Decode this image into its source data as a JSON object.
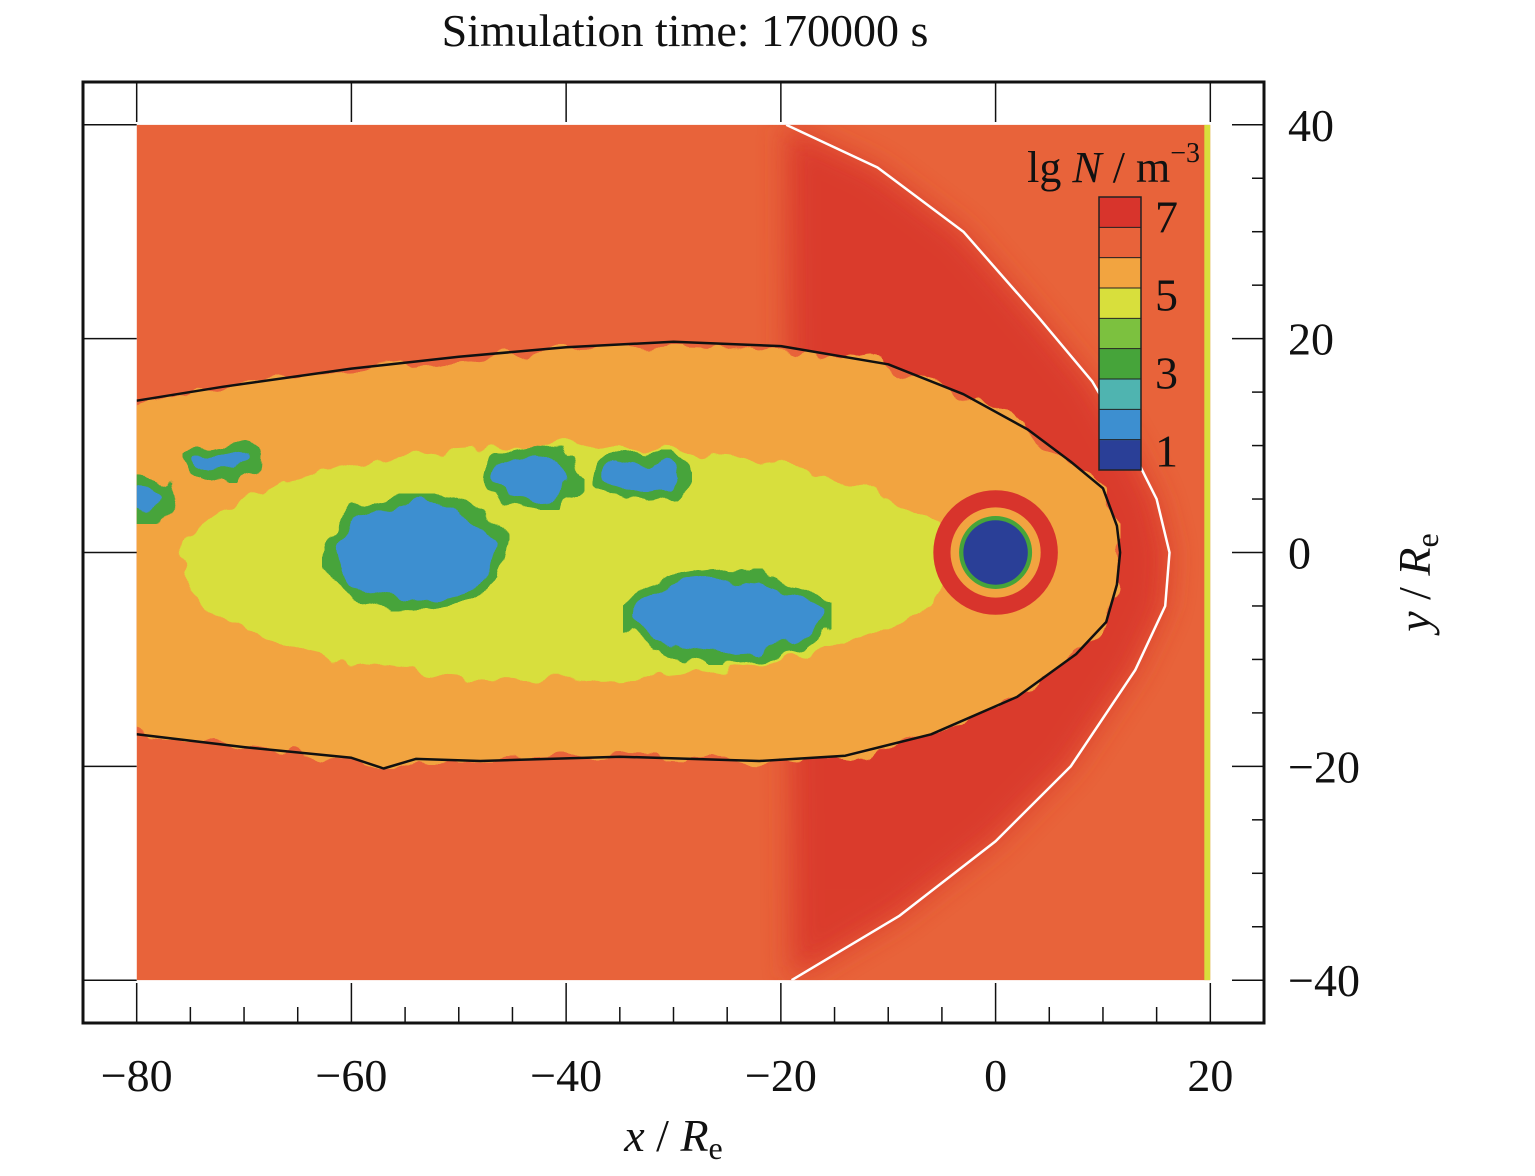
{
  "chart_data": {
    "type": "heatmap",
    "title": "Simulation time: 170000 s",
    "xlabel": {
      "symbol": "x",
      "separator": " / ",
      "unit_main": "R",
      "unit_sub": "e"
    },
    "ylabel": {
      "symbol": "y",
      "separator": " / ",
      "unit_main": "R",
      "unit_sub": "e"
    },
    "xlim": [
      -85,
      25
    ],
    "ylim": [
      -44,
      44
    ],
    "domain_x": [
      -80,
      20
    ],
    "domain_y": [
      -40,
      40
    ],
    "x_ticks": [
      -80,
      -60,
      -40,
      -20,
      0,
      20
    ],
    "x_tick_labels": [
      "−80",
      "−60",
      "−40",
      "−20",
      "0",
      "20"
    ],
    "y_ticks": [
      -40,
      -20,
      0,
      20,
      40
    ],
    "y_tick_labels": [
      "−40",
      "−20",
      "0",
      "20",
      "40"
    ],
    "grid": false,
    "colorbar": {
      "label_prefix": "lg ",
      "label_symbol": "N",
      "label_unit": " / m",
      "label_exp": "−3",
      "ticks": [
        1,
        3,
        5,
        7
      ],
      "tick_labels": [
        "1",
        "3",
        "5",
        "7"
      ],
      "range": [
        0.5,
        7.5
      ],
      "colors": [
        "#2a3f97",
        "#3d8fd0",
        "#4fb4b0",
        "#46a43a",
        "#7cc13f",
        "#d8df3c",
        "#f2a440",
        "#e8633a",
        "#d8342c"
      ],
      "placement": "top-right"
    },
    "background_log_density": 6.7,
    "features": {
      "magnetopause": {
        "color": "#111111",
        "points": [
          [
            -80,
            14.2
          ],
          [
            -72,
            15.5
          ],
          [
            -60,
            17.2
          ],
          [
            -50,
            18.3
          ],
          [
            -40,
            19.2
          ],
          [
            -30,
            19.7
          ],
          [
            -20,
            19.3
          ],
          [
            -10,
            17.6
          ],
          [
            -3,
            14.8
          ],
          [
            3,
            11.5
          ],
          [
            7,
            8.5
          ],
          [
            10,
            6
          ],
          [
            11.3,
            2.5
          ],
          [
            11.6,
            0
          ],
          [
            11.3,
            -3
          ],
          [
            10.3,
            -6.5
          ],
          [
            7.5,
            -9.5
          ],
          [
            2,
            -13.5
          ],
          [
            -6,
            -17
          ],
          [
            -14,
            -19
          ],
          [
            -22,
            -19.5
          ],
          [
            -35,
            -19.1
          ],
          [
            -48,
            -19.5
          ],
          [
            -54,
            -19.3
          ],
          [
            -57,
            -20.2
          ],
          [
            -60,
            -19.2
          ],
          [
            -70,
            -18.2
          ],
          [
            -80,
            -17
          ]
        ]
      },
      "bow_shock": {
        "color": "#ffffff",
        "points": [
          [
            -19.5,
            40
          ],
          [
            -11,
            36
          ],
          [
            -3,
            30
          ],
          [
            4,
            22
          ],
          [
            9,
            16
          ],
          [
            12.5,
            10
          ],
          [
            15,
            5
          ],
          [
            16.2,
            0
          ],
          [
            15.8,
            -5
          ],
          [
            13,
            -11
          ],
          [
            7,
            -20
          ],
          [
            0,
            -27
          ],
          [
            -9,
            -34
          ],
          [
            -19,
            -40
          ]
        ]
      },
      "earth": {
        "center": [
          0,
          0
        ],
        "inner_radius": 3.0,
        "ring_radius": 5.0,
        "inner_log_density": 0.8
      },
      "low_density_patches": [
        {
          "center": [
            -54,
            0
          ],
          "rx": 7.5,
          "ry": 4.5,
          "log_density": 1.0
        },
        {
          "center": [
            -25,
            -6
          ],
          "rx": 8.5,
          "ry": 3.5,
          "log_density": 1.0
        },
        {
          "center": [
            -43,
            7
          ],
          "rx": 3.5,
          "ry": 2.0,
          "log_density": 1.2
        },
        {
          "center": [
            -33,
            7
          ],
          "rx": 3.5,
          "ry": 1.6,
          "log_density": 1.3
        },
        {
          "center": [
            -72,
            8.5
          ],
          "rx": 2.5,
          "ry": 1.0,
          "log_density": 1.4
        },
        {
          "center": [
            -79,
            5
          ],
          "rx": 1.5,
          "ry": 1.3,
          "log_density": 1.0
        }
      ]
    }
  }
}
